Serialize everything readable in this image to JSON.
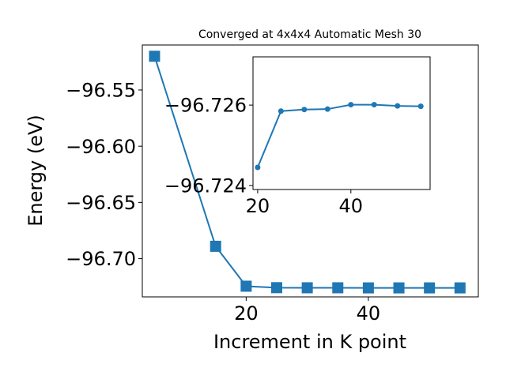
{
  "chart_data": [
    {
      "type": "line",
      "title": "Converged at 4x4x4 Automatic Mesh 30",
      "xlabel": "Increment in K point",
      "ylabel": "Energy (eV)",
      "xlim": [
        3,
        58
      ],
      "ylim": [
        -96.734,
        -96.51
      ],
      "xticks": [
        20,
        40
      ],
      "xtick_labels": [
        "20",
        "40"
      ],
      "yticks": [
        -96.55,
        -96.6,
        -96.65,
        -96.7
      ],
      "ytick_labels": [
        "−96.55",
        "−96.60",
        "−96.65",
        "−96.70"
      ],
      "marker": "square",
      "color": "#1f77b4",
      "grid": false,
      "x": [
        5,
        15,
        20,
        25,
        30,
        35,
        40,
        45,
        50,
        55
      ],
      "values": [
        -96.52,
        -96.689,
        -96.7245,
        -96.7258,
        -96.7259,
        -96.7259,
        -96.726,
        -96.726,
        -96.726,
        -96.726
      ]
    },
    {
      "type": "line",
      "title": "",
      "xlabel": "",
      "ylabel": "",
      "xlim": [
        19,
        57
      ],
      "ylim": [
        -96.7239,
        -96.7272
      ],
      "xticks": [
        20,
        40
      ],
      "xtick_labels": [
        "20",
        "40"
      ],
      "yticks": [
        -96.726,
        -96.724
      ],
      "ytick_labels": [
        "−96.726",
        "−96.724"
      ],
      "marker": "circle",
      "color": "#1f77b4",
      "grid": false,
      "x": [
        20,
        25,
        30,
        35,
        40,
        45,
        50,
        55
      ],
      "values": [
        -96.72445,
        -96.72585,
        -96.72589,
        -96.7259,
        -96.72601,
        -96.72601,
        -96.72598,
        -96.72597
      ]
    }
  ]
}
